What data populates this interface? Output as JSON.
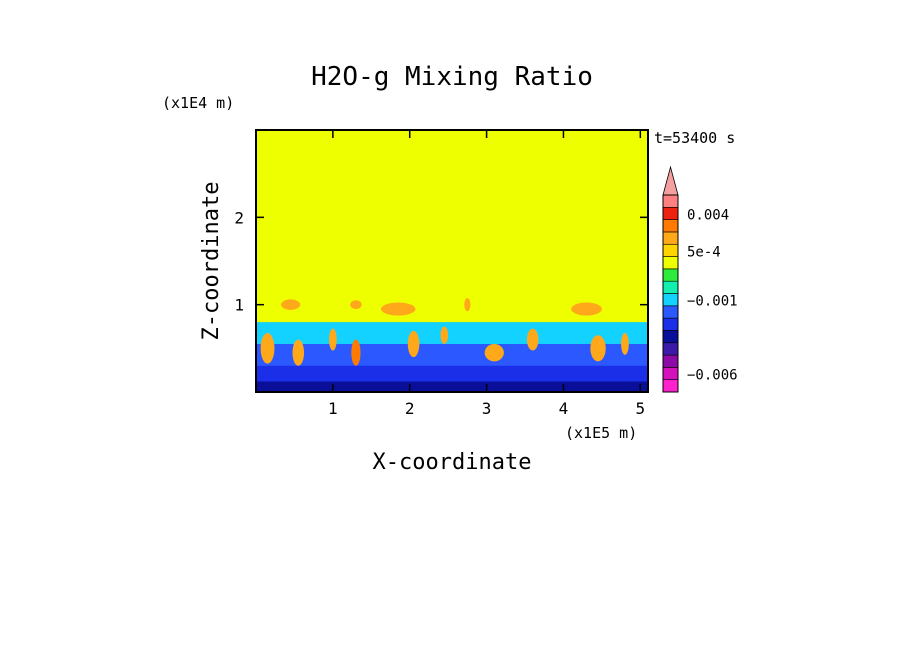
{
  "chart_data": {
    "type": "heatmap",
    "title": "H2O-g Mixing Ratio",
    "xlabel": "X-coordinate",
    "ylabel": "Z-coordinate",
    "x_unit": "(x1E5 m)",
    "y_unit": "(x1E4 m)",
    "time_label": "t=53400 s",
    "xlim": [
      0,
      5.1
    ],
    "ylim": [
      0,
      3
    ],
    "xticks": [
      "1",
      "2",
      "3",
      "4",
      "5"
    ],
    "yticks": [
      "1",
      "2"
    ],
    "xtick_values": [
      1,
      2,
      3,
      4,
      5
    ],
    "ytick_values": [
      1,
      2
    ],
    "colorbar": {
      "labels": [
        {
          "text": "0.004",
          "value": 0.004
        },
        {
          "text": "5e-4",
          "value": 0.0005
        },
        {
          "text": "−0.001",
          "value": -0.001
        },
        {
          "text": "−0.006",
          "value": -0.006
        }
      ],
      "bands": [
        {
          "value": -0.008,
          "color": "#ff22cc"
        },
        {
          "value": -0.006,
          "color": "#d411bb"
        },
        {
          "value": -0.005,
          "color": "#8c0aa5"
        },
        {
          "value": -0.004,
          "color": "#3c1aa8"
        },
        {
          "value": -0.003,
          "color": "#0a0f9a"
        },
        {
          "value": -0.002,
          "color": "#1b2ee8"
        },
        {
          "value": -0.0015,
          "color": "#2b58ff"
        },
        {
          "value": -0.001,
          "color": "#14d2ff"
        },
        {
          "value": -0.0005,
          "color": "#11f0b0"
        },
        {
          "value": 0,
          "color": "#2eea3a"
        },
        {
          "value": 0.0002,
          "color": "#eeff00"
        },
        {
          "value": 0.0005,
          "color": "#ffd400"
        },
        {
          "value": 0.001,
          "color": "#ffa81a"
        },
        {
          "value": 0.002,
          "color": "#ff7a00"
        },
        {
          "value": 0.004,
          "color": "#ee2211"
        },
        {
          "value": 0.006,
          "color": "#ff8080"
        },
        {
          "value": 0.008,
          "color": "#f4a0a0"
        }
      ]
    },
    "field": {
      "background_color": "#eeff00",
      "layer_top": 0.8,
      "layers": [
        {
          "z_top": 0.8,
          "color": "#14d2ff"
        },
        {
          "z_top": 0.55,
          "color": "#2b58ff"
        },
        {
          "z_top": 0.3,
          "color": "#1b2ee8"
        },
        {
          "z_top": 0.12,
          "color": "#0a0f9a"
        }
      ],
      "plumes": [
        {
          "x": 0.15,
          "z": 0.5,
          "w": 0.18,
          "h": 0.35,
          "color": "#ffa81a"
        },
        {
          "x": 0.45,
          "z": 1.0,
          "w": 0.25,
          "h": 0.12,
          "color": "#ffa81a"
        },
        {
          "x": 0.55,
          "z": 0.45,
          "w": 0.15,
          "h": 0.3,
          "color": "#ffa81a"
        },
        {
          "x": 1.0,
          "z": 0.6,
          "w": 0.1,
          "h": 0.25,
          "color": "#ffa81a"
        },
        {
          "x": 1.3,
          "z": 1.0,
          "w": 0.15,
          "h": 0.1,
          "color": "#ffa81a"
        },
        {
          "x": 1.3,
          "z": 0.45,
          "w": 0.12,
          "h": 0.3,
          "color": "#ff7a00"
        },
        {
          "x": 1.85,
          "z": 0.95,
          "w": 0.45,
          "h": 0.15,
          "color": "#ffa81a"
        },
        {
          "x": 2.05,
          "z": 0.55,
          "w": 0.15,
          "h": 0.3,
          "color": "#ffa81a"
        },
        {
          "x": 2.45,
          "z": 0.65,
          "w": 0.1,
          "h": 0.2,
          "color": "#ffa81a"
        },
        {
          "x": 2.75,
          "z": 1.0,
          "w": 0.08,
          "h": 0.15,
          "color": "#ffa81a"
        },
        {
          "x": 3.1,
          "z": 0.45,
          "w": 0.25,
          "h": 0.2,
          "color": "#ffa81a"
        },
        {
          "x": 3.6,
          "z": 0.6,
          "w": 0.15,
          "h": 0.25,
          "color": "#ffa81a"
        },
        {
          "x": 4.3,
          "z": 0.95,
          "w": 0.4,
          "h": 0.15,
          "color": "#ffa81a"
        },
        {
          "x": 4.45,
          "z": 0.5,
          "w": 0.2,
          "h": 0.3,
          "color": "#ffa81a"
        },
        {
          "x": 4.8,
          "z": 0.55,
          "w": 0.1,
          "h": 0.25,
          "color": "#ffa81a"
        }
      ]
    }
  }
}
